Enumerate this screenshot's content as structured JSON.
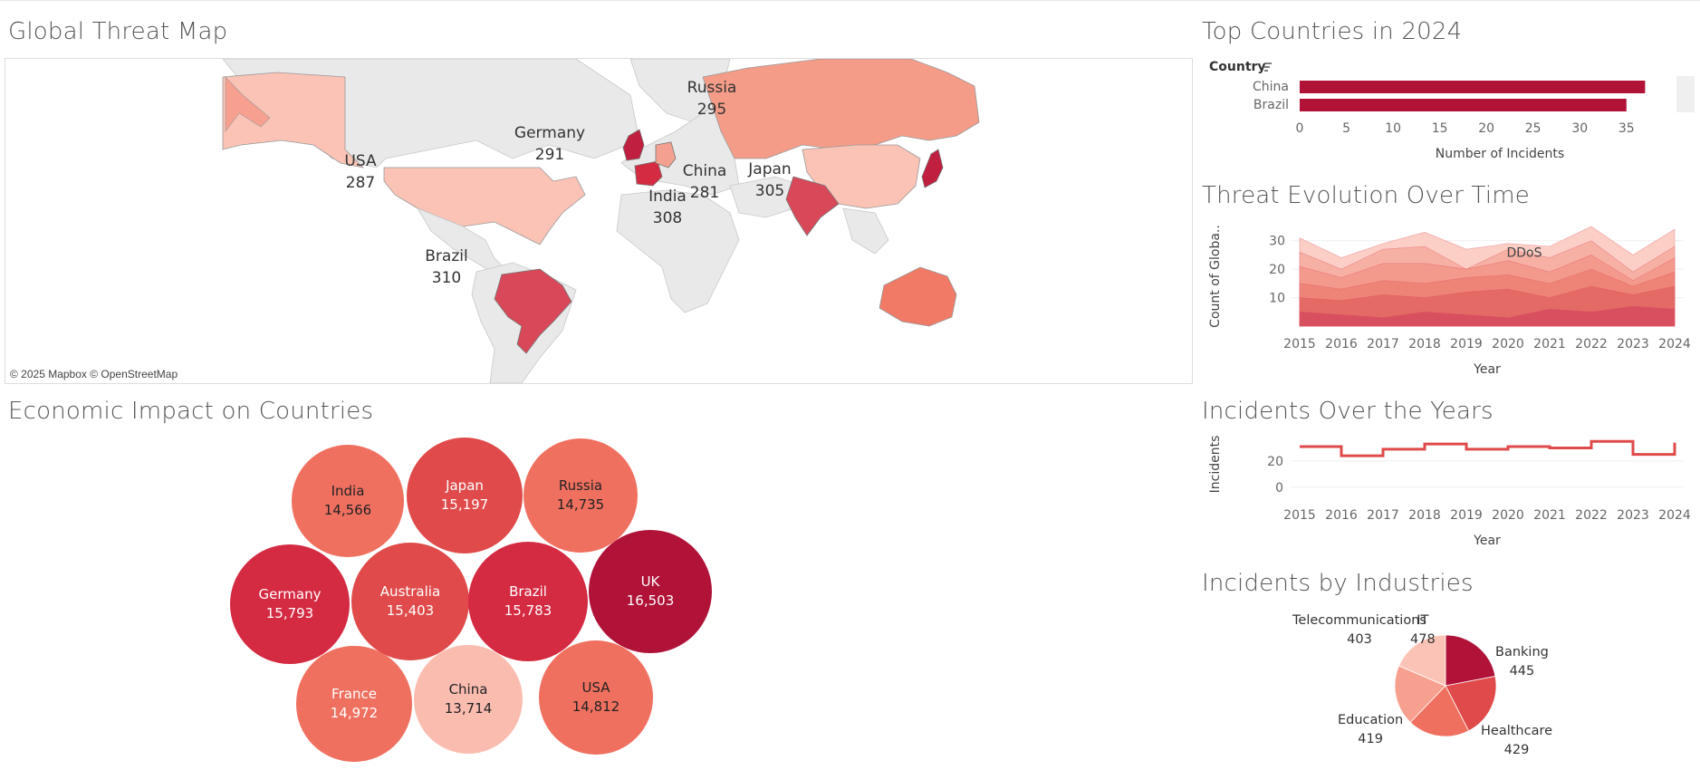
{
  "dashboard": {
    "map_title": "Global Threat Map",
    "top_title": "Top Countries in 2024",
    "evolution_title": "Threat Evolution Over Time",
    "incidents_title": "Incidents Over the Years",
    "bubble_title": "Economic Impact on Countries",
    "industries_title": "Incidents by Industries"
  },
  "map": {
    "credit": "© 2025 Mapbox © OpenStreetMap",
    "labels": [
      {
        "country": "Russia",
        "value": "295"
      },
      {
        "country": "Germany",
        "value": "291"
      },
      {
        "country": "USA",
        "value": "287"
      },
      {
        "country": "China",
        "value": "281"
      },
      {
        "country": "Japan",
        "value": "305"
      },
      {
        "country": "India",
        "value": "308"
      },
      {
        "country": "Brazil",
        "value": "310"
      }
    ]
  },
  "colors": {
    "darkest": "#b01238",
    "dark": "#d42a42",
    "mid_dark": "#e04a4a",
    "mid": "#f07060",
    "light": "#f58a72",
    "lighter": "#f7a090",
    "lightest": "#fbc3b6",
    "land": "#e8e8e8"
  },
  "chart_data": [
    {
      "type": "bar",
      "title": "Top Countries in 2024",
      "dimension_label": "Country",
      "categories": [
        "China",
        "Brazil"
      ],
      "values": [
        37,
        35
      ],
      "xlabel": "Number of Incidents",
      "xticks": [
        "0",
        "5",
        "10",
        "15",
        "20",
        "25",
        "30",
        "35"
      ],
      "xlim": [
        0,
        39
      ]
    },
    {
      "type": "area",
      "title": "Threat Evolution Over Time",
      "xlabel": "Year",
      "ylabel": "Count of Globa..",
      "x": [
        "2015",
        "2016",
        "2017",
        "2018",
        "2019",
        "2020",
        "2021",
        "2022",
        "2023",
        "2024"
      ],
      "yticks": [
        "10",
        "20",
        "30"
      ],
      "ylim": [
        0,
        35
      ],
      "annotation": "DDoS",
      "series": [
        {
          "values": [
            5,
            4,
            3,
            5,
            4,
            3,
            6,
            5,
            7,
            6
          ]
        },
        {
          "values": [
            10,
            9,
            11,
            10,
            12,
            13,
            10,
            14,
            11,
            14
          ]
        },
        {
          "values": [
            15,
            13,
            16,
            15,
            17,
            18,
            15,
            20,
            14,
            19
          ]
        },
        {
          "values": [
            21,
            17,
            22,
            22,
            20,
            23,
            19,
            25,
            16,
            24
          ]
        },
        {
          "values": [
            26,
            20,
            27,
            28,
            20,
            27,
            24,
            30,
            19,
            28
          ]
        },
        {
          "values": [
            31,
            24,
            29,
            33,
            27,
            29,
            28,
            35,
            25,
            34
          ]
        }
      ]
    },
    {
      "type": "line",
      "title": "Incidents Over the Years",
      "xlabel": "Year",
      "ylabel": "Incidents",
      "x": [
        "2015",
        "2016",
        "2017",
        "2018",
        "2019",
        "2020",
        "2021",
        "2022",
        "2023",
        "2024"
      ],
      "values": [
        31,
        24,
        29,
        33,
        29,
        31,
        30,
        35,
        25,
        34
      ],
      "yticks": [
        "0",
        "20"
      ],
      "ylim": [
        -5,
        40
      ]
    },
    {
      "type": "pie",
      "title": "Incidents by Industries",
      "categories": [
        "IT",
        "Banking",
        "Healthcare",
        "Education",
        "Telecommunications"
      ],
      "values": [
        478,
        445,
        429,
        419,
        403
      ],
      "labels": [
        "478",
        "445",
        "429",
        "419",
        "403"
      ]
    },
    {
      "type": "bubble",
      "title": "Economic Impact on Countries",
      "categories": [
        "India",
        "Japan",
        "Russia",
        "Germany",
        "Australia",
        "Brazil",
        "UK",
        "France",
        "China",
        "USA"
      ],
      "values": [
        14566,
        15197,
        14735,
        15793,
        15403,
        15783,
        16503,
        14972,
        13714,
        14812
      ],
      "labels": [
        "14,566",
        "15,197",
        "14,735",
        "15,793",
        "15,403",
        "15,783",
        "16,503",
        "14,972",
        "13,714",
        "14,812"
      ]
    }
  ]
}
